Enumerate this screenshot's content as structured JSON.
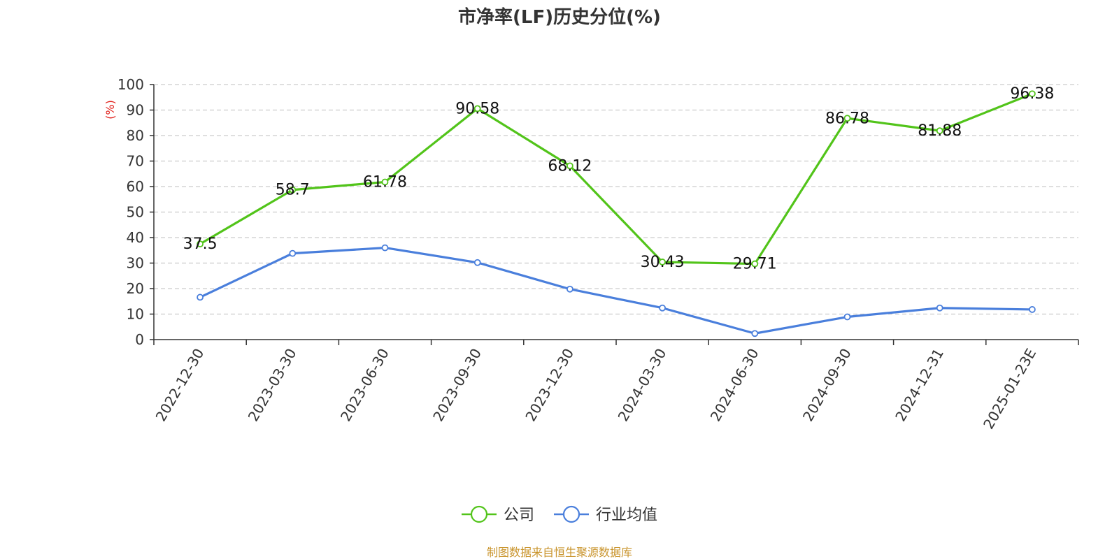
{
  "chart_data": {
    "type": "line",
    "title": "市净率(LF)历史分位(%)",
    "ylabel": "(%)",
    "ylim": [
      0,
      100
    ],
    "yticks": [
      "0",
      "10",
      "20",
      "30",
      "40",
      "50",
      "60",
      "70",
      "80",
      "90",
      "100"
    ],
    "categories": [
      "2022-12-30",
      "2023-03-30",
      "2023-06-30",
      "2023-09-30",
      "2023-12-30",
      "2024-03-30",
      "2024-06-30",
      "2024-09-30",
      "2024-12-31",
      "2025-01-23E"
    ],
    "series": [
      {
        "name": "公司",
        "color": "#52c41a",
        "values": [
          37.5,
          58.7,
          61.78,
          90.58,
          68.12,
          30.43,
          29.71,
          86.78,
          81.88,
          96.38
        ],
        "labels": [
          "37.5",
          "58.7",
          "61.78",
          "90.58",
          "68.12",
          "30.43",
          "29.71",
          "86.78",
          "81.88",
          "96.38"
        ]
      },
      {
        "name": "行业均值",
        "color": "#4a7fdc",
        "values": [
          16.6,
          33.8,
          36.0,
          30.2,
          19.8,
          12.4,
          2.4,
          8.9,
          12.4,
          11.8
        ]
      }
    ],
    "grid": true,
    "legend_position": "bottom-center"
  },
  "footer": {
    "source": "制图数据来自恒生聚源数据库"
  }
}
